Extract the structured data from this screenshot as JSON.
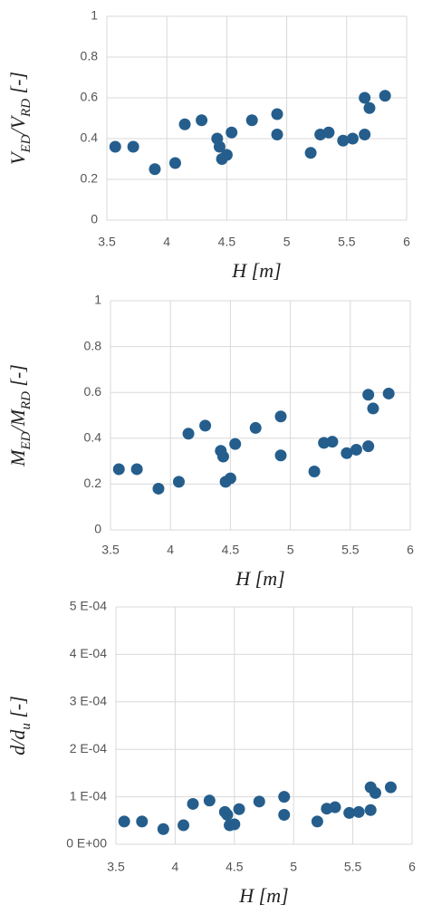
{
  "chart_data": [
    {
      "type": "scatter",
      "color": "#255e8c",
      "grid": true,
      "xlabel": "H [m]",
      "ylabel": [
        {
          "text": "V"
        },
        {
          "text": "ED",
          "sub": true
        },
        {
          "text": "/V"
        },
        {
          "text": "RD",
          "sub": true
        },
        {
          "text": " [-]"
        }
      ],
      "xlim": [
        3.5,
        6
      ],
      "xticks": [
        3.5,
        4,
        4.5,
        5,
        5.5,
        6
      ],
      "ylim": [
        0,
        1
      ],
      "yticks": [
        0,
        0.2,
        0.4,
        0.6,
        0.8,
        1
      ],
      "x": [
        3.57,
        3.72,
        3.9,
        4.07,
        4.15,
        4.29,
        4.42,
        4.44,
        4.46,
        4.5,
        4.54,
        4.71,
        4.92,
        4.92,
        5.2,
        5.28,
        5.35,
        5.47,
        5.55,
        5.65,
        5.65,
        5.69,
        5.82
      ],
      "values": [
        0.36,
        0.36,
        0.25,
        0.28,
        0.47,
        0.49,
        0.4,
        0.36,
        0.3,
        0.32,
        0.43,
        0.49,
        0.52,
        0.42,
        0.33,
        0.42,
        0.43,
        0.39,
        0.4,
        0.42,
        0.6,
        0.55,
        0.61
      ]
    },
    {
      "type": "scatter",
      "color": "#255e8c",
      "grid": true,
      "xlabel": "H [m]",
      "ylabel": [
        {
          "text": "M"
        },
        {
          "text": "ED",
          "sub": true
        },
        {
          "text": "/M"
        },
        {
          "text": "RD",
          "sub": true
        },
        {
          "text": " [-]"
        }
      ],
      "xlim": [
        3.5,
        6
      ],
      "xticks": [
        3.5,
        4,
        4.5,
        5,
        5.5,
        6
      ],
      "ylim": [
        0,
        1
      ],
      "yticks": [
        0,
        0.2,
        0.4,
        0.6,
        0.8,
        1
      ],
      "x": [
        3.57,
        3.72,
        3.9,
        4.07,
        4.15,
        4.29,
        4.42,
        4.44,
        4.46,
        4.5,
        4.54,
        4.71,
        4.92,
        4.92,
        5.2,
        5.28,
        5.35,
        5.47,
        5.55,
        5.65,
        5.65,
        5.69,
        5.82
      ],
      "values": [
        0.265,
        0.265,
        0.18,
        0.21,
        0.42,
        0.455,
        0.345,
        0.32,
        0.21,
        0.225,
        0.375,
        0.445,
        0.495,
        0.325,
        0.255,
        0.38,
        0.385,
        0.335,
        0.35,
        0.365,
        0.59,
        0.53,
        0.595
      ]
    },
    {
      "type": "scatter",
      "color": "#255e8c",
      "grid": true,
      "xlabel": "H [m]",
      "ylabel": [
        {
          "text": "d/d"
        },
        {
          "text": "u",
          "sub": true
        },
        {
          "text": " [-]"
        }
      ],
      "xlim": [
        3.5,
        6
      ],
      "xticks": [
        3.5,
        4,
        4.5,
        5,
        5.5,
        6
      ],
      "ylim": [
        0,
        0.0005
      ],
      "yticks": [
        {
          "value": 0,
          "label": "0 E+00"
        },
        {
          "value": 0.0001,
          "label": "1 E-04"
        },
        {
          "value": 0.0002,
          "label": "2 E-04"
        },
        {
          "value": 0.0003,
          "label": "3 E-04"
        },
        {
          "value": 0.0004,
          "label": "4 E-04"
        },
        {
          "value": 0.0005,
          "label": "5 E-04"
        }
      ],
      "x": [
        3.57,
        3.72,
        3.9,
        4.07,
        4.15,
        4.29,
        4.42,
        4.44,
        4.46,
        4.5,
        4.54,
        4.71,
        4.92,
        4.92,
        5.2,
        5.28,
        5.35,
        5.47,
        5.55,
        5.65,
        5.65,
        5.69,
        5.82
      ],
      "values": [
        4.8e-05,
        4.8e-05,
        3.2e-05,
        4e-05,
        8.5e-05,
        9.2e-05,
        6.8e-05,
        6.2e-05,
        4e-05,
        4.2e-05,
        7.4e-05,
        9e-05,
        0.0001,
        6.2e-05,
        4.8e-05,
        7.5e-05,
        7.8e-05,
        6.6e-05,
        6.8e-05,
        7.2e-05,
        0.00012,
        0.000108,
        0.00012
      ]
    }
  ]
}
